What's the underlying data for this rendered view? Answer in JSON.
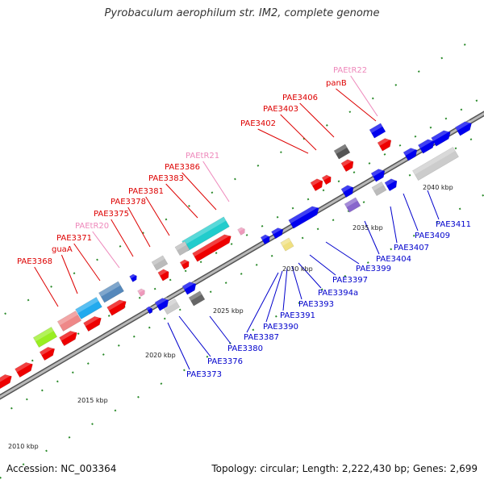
{
  "title": "Pyrobaculum aerophilum str. IM2, complete genome",
  "footer": {
    "accession": "Accession: NC_003364",
    "summary": "Topology: circular; Length: 2,222,430 bp; Genes: 2,699"
  },
  "colors": {
    "forward_label": "#dd0000",
    "reverse_label": "#0000cc",
    "rna_label": "#ee88bb",
    "backbone": "#888888",
    "tick": "#2a8a2a"
  },
  "scale_labels": [
    "2010 kbp",
    "2015 kbp",
    "2020 kbp",
    "2025 kbp",
    "2030 kbp",
    "2035 kbp",
    "2040 kbp"
  ],
  "forward_genes": [
    "PAE3368",
    "guaA",
    "PAE3371",
    "PAEtR20",
    "PAE3375",
    "PAE3378",
    "PAE3381",
    "PAE3383",
    "PAE3386",
    "PAEtR21",
    "PAE3402",
    "PAE3403",
    "PAE3406",
    "panB",
    "PAEtR22"
  ],
  "reverse_genes": [
    "PAE3373",
    "PAE3376",
    "PAE3380",
    "PAE3387",
    "PAE3390",
    "PAE3391",
    "PAE3393",
    "PAE3394a",
    "PAE3397",
    "PAE3399",
    "PAE3404",
    "PAE3407",
    "PAE3409",
    "PAE3411"
  ]
}
